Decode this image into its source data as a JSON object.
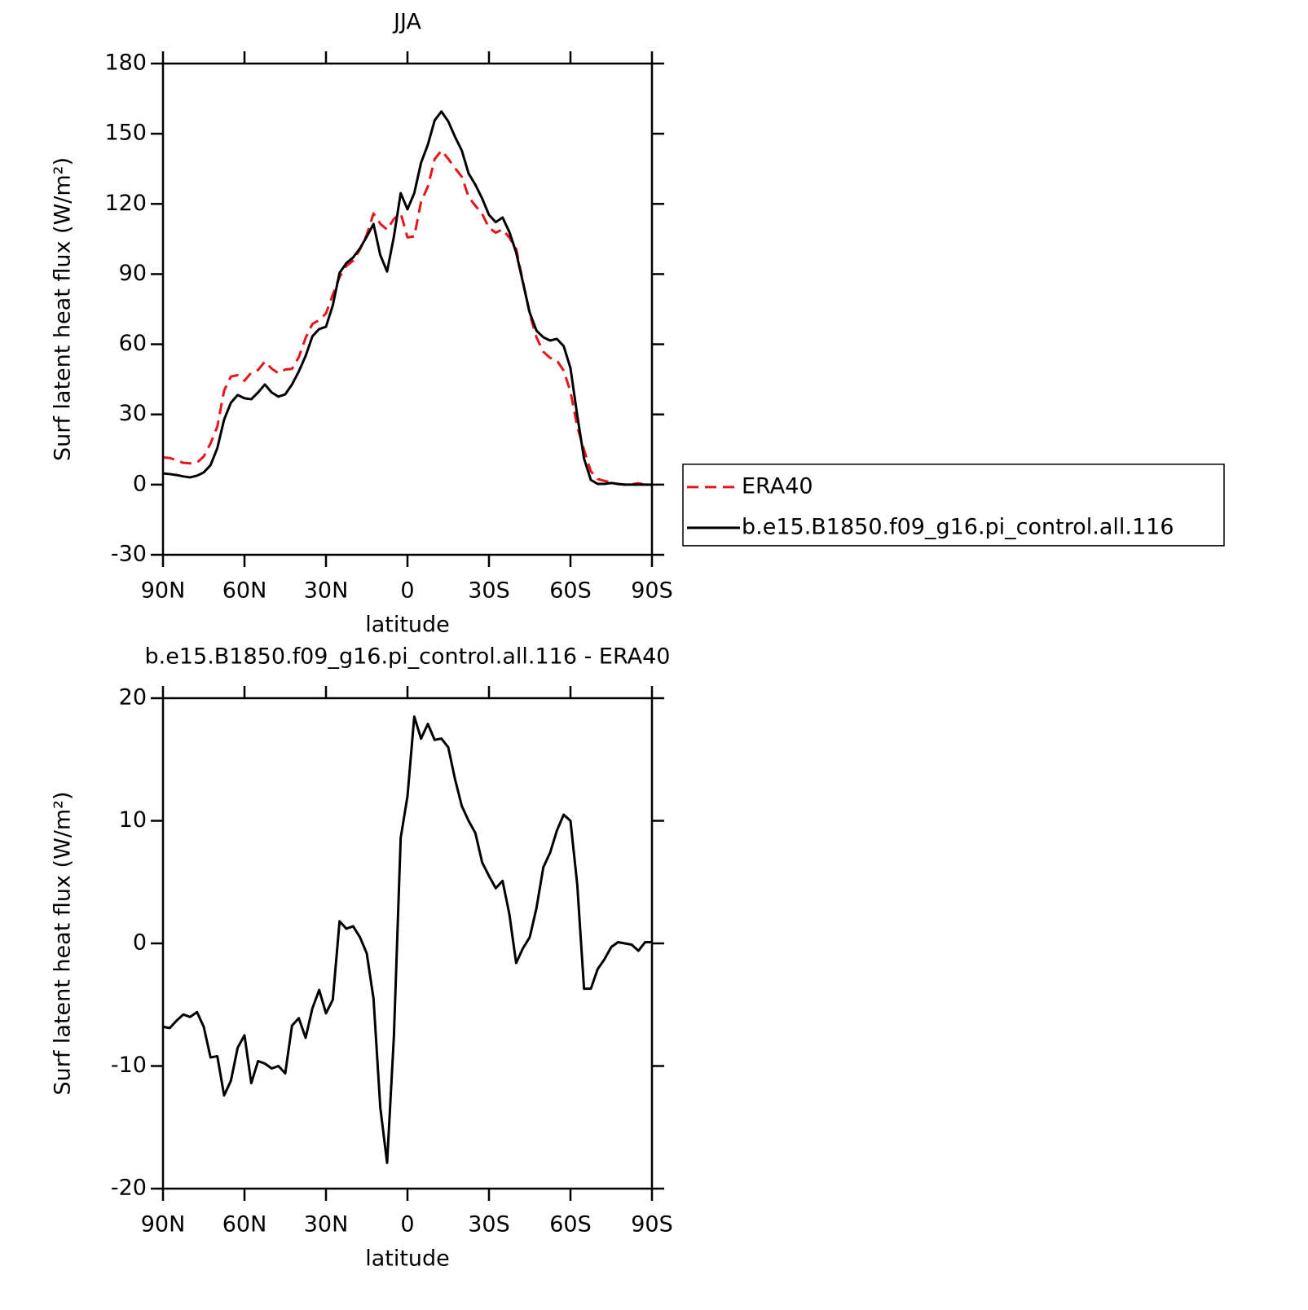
{
  "chart_data": [
    {
      "type": "line",
      "title": "JJA",
      "xlabel": "latitude",
      "ylabel": "Surf latent heat flux (W/m²)",
      "x": [
        90,
        87.5,
        85,
        82.5,
        80,
        77.5,
        75,
        72.5,
        70,
        67.5,
        65,
        62.5,
        60,
        57.5,
        55,
        52.5,
        50,
        47.5,
        45,
        42.5,
        40,
        37.5,
        35,
        32.5,
        30,
        27.5,
        25,
        22.5,
        20,
        17.5,
        15,
        12.5,
        10,
        7.5,
        5,
        2.5,
        0,
        -2.5,
        -5,
        -7.5,
        -10,
        -12.5,
        -15,
        -17.5,
        -20,
        -22.5,
        -25,
        -27.5,
        -30,
        -32.5,
        -35,
        -37.5,
        -40,
        -42.5,
        -45,
        -47.5,
        -50,
        -52.5,
        -55,
        -57.5,
        -60,
        -62.5,
        -65,
        -67.5,
        -70,
        -72.5,
        -75,
        -77.5,
        -80,
        -82.5,
        -85,
        -87.5,
        -90
      ],
      "series": [
        {
          "name": "ERA40",
          "color": "#e8141c",
          "linestyle": "dashed",
          "values": [
            11.6,
            11.4,
            10.4,
            9.3,
            9.1,
            9.4,
            12.0,
            17.6,
            24.8,
            40.2,
            46.2,
            46.8,
            44.4,
            47.9,
            49,
            52.6,
            49.6,
            47.6,
            49.2,
            49.5,
            54.5,
            62.7,
            68.7,
            70.3,
            73.2,
            81.2,
            88.7,
            93.5,
            95.7,
            100.5,
            106.8,
            115.9,
            111.5,
            109,
            113.6,
            116,
            105.7,
            106.1,
            120.9,
            127.4,
            139.1,
            142.8,
            139.3,
            135.3,
            131.6,
            123,
            119.2,
            115.7,
            109.8,
            107.7,
            109.1,
            105.6,
            100.9,
            86.8,
            73,
            62.9,
            56.8,
            54.2,
            53.1,
            48.7,
            39.8,
            24.8,
            14.8,
            5.7,
            2.4,
            1.6,
            1.0,
            0.2,
            0.0,
            0.1,
            0.6,
            -0.1,
            -0.1
          ]
        },
        {
          "name": "b.e15.B1850.f09_g16.pi_control.all.116",
          "color": "#000000",
          "linestyle": "solid",
          "values": [
            4.8,
            4.5,
            4.1,
            3.5,
            3.1,
            3.8,
            5.2,
            8.3,
            15.6,
            27.8,
            35,
            38.3,
            36.9,
            36.5,
            39.4,
            42.8,
            39.4,
            37.6,
            38.6,
            42.8,
            48.4,
            55,
            63.4,
            66.5,
            67.5,
            76.6,
            90.5,
            94.7,
            97.1,
            101,
            106,
            111.4,
            98.1,
            91.1,
            106,
            124.6,
            117.7,
            124.6,
            137.6,
            145.3,
            155.7,
            159.5,
            155.3,
            148.7,
            142.8,
            133,
            128.2,
            122.3,
            115.3,
            112.2,
            114.2,
            108,
            99.3,
            86.4,
            73.5,
            65.8,
            63,
            61.6,
            62.3,
            59.2,
            49.8,
            29.6,
            11.1,
            2,
            0.3,
            0.3,
            0.7,
            0.3,
            0,
            0,
            0,
            0,
            0
          ]
        }
      ],
      "xlim": [
        90,
        -90
      ],
      "xticks": [
        {
          "value": 90,
          "label": "90N"
        },
        {
          "value": 60,
          "label": "60N"
        },
        {
          "value": 30,
          "label": "30N"
        },
        0,
        {
          "value": -30,
          "label": "30S"
        },
        {
          "value": -60,
          "label": "60S"
        },
        {
          "value": -90,
          "label": "90S"
        }
      ],
      "ylim": [
        -30,
        180
      ],
      "yticks": [
        -30,
        0,
        30,
        60,
        90,
        120,
        150,
        180
      ],
      "legend": "right"
    },
    {
      "type": "line",
      "title": "b.e15.B1850.f09_g16.pi_control.all.116 - ERA40",
      "xlabel": "latitude",
      "ylabel": "Surf latent heat flux (W/m²)",
      "x": [
        90,
        87.5,
        85,
        82.5,
        80,
        77.5,
        75,
        72.5,
        70,
        67.5,
        65,
        62.5,
        60,
        57.5,
        55,
        52.5,
        50,
        47.5,
        45,
        42.5,
        40,
        37.5,
        35,
        32.5,
        30,
        27.5,
        25,
        22.5,
        20,
        17.5,
        15,
        12.5,
        10,
        7.5,
        5,
        2.5,
        0,
        -2.5,
        -5,
        -7.5,
        -10,
        -12.5,
        -15,
        -17.5,
        -20,
        -22.5,
        -25,
        -27.5,
        -30,
        -32.5,
        -35,
        -37.5,
        -40,
        -42.5,
        -45,
        -47.5,
        -50,
        -52.5,
        -55,
        -57.5,
        -60,
        -62.5,
        -65,
        -67.5,
        -70,
        -72.5,
        -75,
        -77.5,
        -80,
        -82.5,
        -85,
        -87.5,
        -90
      ],
      "color": "#000000",
      "values": [
        -6.8,
        -6.9,
        -6.3,
        -5.8,
        -6.0,
        -5.6,
        -6.8,
        -9.3,
        -9.2,
        -12.4,
        -11.2,
        -8.5,
        -7.5,
        -11.4,
        -9.6,
        -9.8,
        -10.2,
        -10,
        -10.6,
        -6.7,
        -6.1,
        -7.7,
        -5.3,
        -3.8,
        -5.7,
        -4.6,
        1.8,
        1.2,
        1.4,
        0.5,
        -0.8,
        -4.5,
        -13.4,
        -17.9,
        -7.6,
        8.6,
        12,
        18.5,
        16.7,
        17.9,
        16.6,
        16.7,
        16,
        13.4,
        11.2,
        10,
        9,
        6.6,
        5.5,
        4.5,
        5.1,
        2.4,
        -1.6,
        -0.4,
        0.5,
        2.9,
        6.2,
        7.4,
        9.2,
        10.5,
        10,
        4.8,
        -3.7,
        -3.7,
        -2.1,
        -1.3,
        -0.3,
        0.1,
        0,
        -0.1,
        -0.6,
        0.1,
        0.1
      ],
      "xlim": [
        90,
        -90
      ],
      "xticks": [
        {
          "value": 90,
          "label": "90N"
        },
        {
          "value": 60,
          "label": "60N"
        },
        {
          "value": 30,
          "label": "30N"
        },
        0,
        {
          "value": -30,
          "label": "30S"
        },
        {
          "value": -60,
          "label": "60S"
        },
        {
          "value": -90,
          "label": "90S"
        }
      ],
      "ylim": [
        -20,
        20
      ],
      "yticks": [
        -20,
        -10,
        0,
        10,
        20
      ]
    }
  ]
}
